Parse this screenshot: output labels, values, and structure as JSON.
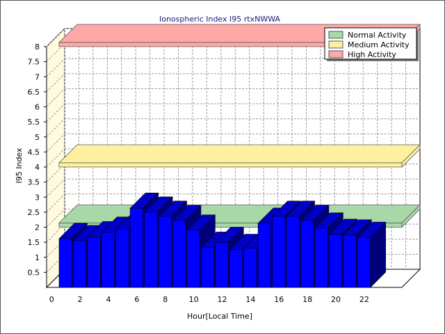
{
  "chart_data": {
    "type": "bar",
    "title": "Ionospheric Index I95 rtxNWWA",
    "xlabel": "Hour[Local Time]",
    "ylabel": "I95 Index",
    "ylim": [
      0,
      8
    ],
    "yticks": [
      "0.5",
      "1",
      "1.5",
      "2",
      "2.5",
      "3",
      "3.5",
      "4",
      "4.5",
      "5",
      "5.5",
      "6",
      "6.5",
      "7",
      "7.5",
      "8"
    ],
    "xticks": [
      "0",
      "2",
      "4",
      "6",
      "8",
      "10",
      "12",
      "14",
      "16",
      "18",
      "20",
      "22"
    ],
    "x": [
      0,
      1,
      2,
      3,
      4,
      5,
      6,
      7,
      8,
      9,
      10,
      11,
      12,
      13,
      14,
      15,
      16,
      17,
      18,
      19,
      20,
      21,
      22
    ],
    "values": [
      1.62,
      1.55,
      1.68,
      1.83,
      1.93,
      2.63,
      2.5,
      2.36,
      2.22,
      1.9,
      1.33,
      1.49,
      1.26,
      1.3,
      2.13,
      2.36,
      2.36,
      2.22,
      1.97,
      1.76,
      1.74,
      1.66,
      null
    ],
    "bar_color": "#0000ff",
    "bands": [
      {
        "name": "Normal Activity",
        "value": 2.0,
        "color": "#a8d8a8"
      },
      {
        "name": "Medium Activity",
        "value": 4.0,
        "color": "#fff0a0"
      },
      {
        "name": "High Activity",
        "value": 8.0,
        "color": "#ffa8a8"
      }
    ],
    "grid": true,
    "legend_position": "top-right"
  }
}
